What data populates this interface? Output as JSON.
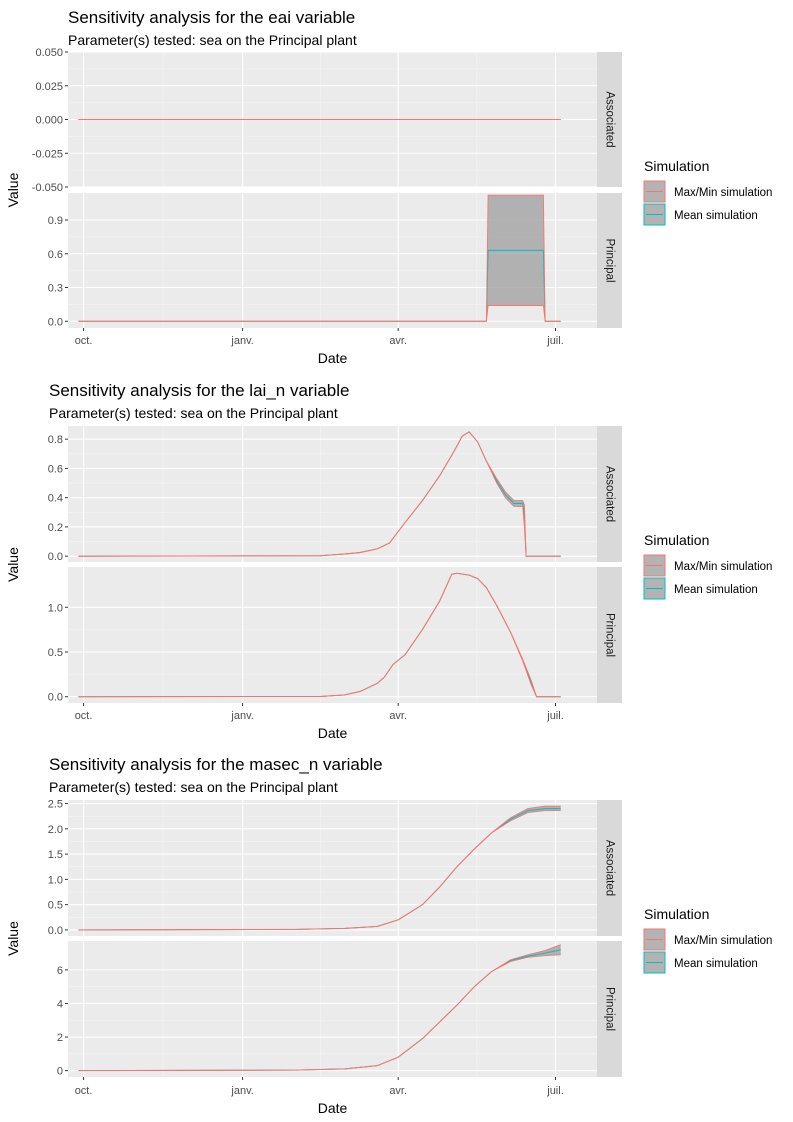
{
  "chart_data": [
    {
      "type": "line",
      "title": "Sensitivity analysis for the eai variable",
      "subtitle": "Parameter(s) tested: sea on the  Principal plant",
      "xlabel": "Date",
      "ylabel": "Value",
      "x_axis": {
        "type": "date",
        "ticks": [
          {
            "date": "2000-10-01",
            "label": "oct."
          },
          {
            "date": "2001-01-01",
            "label": "janv."
          },
          {
            "date": "2001-04-01",
            "label": "avr."
          },
          {
            "date": "2001-07-01",
            "label": "juil."
          }
        ],
        "xlim": [
          "2000-09-22",
          "2001-07-25"
        ]
      },
      "legend": {
        "title": "Simulation",
        "position": "right",
        "entries": [
          {
            "label": "Max/Min simulation",
            "color": "#F8766D"
          },
          {
            "label": "Mean simulation",
            "color": "#00BFC4"
          }
        ]
      },
      "panels": [
        {
          "strip": "Associated",
          "ylim": [
            -0.05,
            0.05
          ],
          "yticks": [
            -0.05,
            -0.025,
            0,
            0.025,
            0.05
          ],
          "ytick_labels": [
            "-0.050",
            "-0.025",
            "0.000",
            "0.025",
            "0.050"
          ],
          "x": [
            "2000-09-28",
            "2001-07-04"
          ],
          "max": [
            0,
            0
          ],
          "min": [
            0,
            0
          ],
          "mean": [
            0,
            0
          ]
        },
        {
          "strip": "Principal",
          "ylim": [
            -0.06,
            1.14
          ],
          "yticks": [
            0,
            0.3,
            0.6,
            0.9
          ],
          "ytick_labels": [
            "0.0",
            "0.3",
            "0.6",
            "0.9"
          ],
          "x": [
            "2000-09-28",
            "2001-05-22",
            "2001-05-23",
            "2001-06-24",
            "2001-06-25",
            "2001-07-04"
          ],
          "max": [
            0,
            0,
            1.12,
            1.12,
            0,
            0
          ],
          "min": [
            0,
            0,
            0.14,
            0.14,
            0,
            0
          ],
          "mean": [
            0,
            0,
            0.63,
            0.63,
            0,
            0
          ]
        }
      ]
    },
    {
      "type": "line",
      "title": "Sensitivity analysis for the lai_n variable",
      "subtitle": "Parameter(s) tested: sea on the  Principal plant",
      "xlabel": "Date",
      "ylabel": "Value",
      "x_axis": {
        "type": "date",
        "ticks": [
          {
            "date": "2000-10-01",
            "label": "oct."
          },
          {
            "date": "2001-01-01",
            "label": "janv."
          },
          {
            "date": "2001-04-01",
            "label": "avr."
          },
          {
            "date": "2001-07-01",
            "label": "juil."
          }
        ],
        "xlim": [
          "2000-09-22",
          "2001-07-25"
        ]
      },
      "legend": {
        "title": "Simulation",
        "position": "right",
        "entries": [
          {
            "label": "Max/Min simulation",
            "color": "#F8766D"
          },
          {
            "label": "Mean simulation",
            "color": "#00BFC4"
          }
        ]
      },
      "panels": [
        {
          "strip": "Associated",
          "ylim": [
            -0.04,
            0.89
          ],
          "yticks": [
            0,
            0.2,
            0.4,
            0.6,
            0.8
          ],
          "ytick_labels": [
            "0.0",
            "0.2",
            "0.4",
            "0.6",
            "0.8"
          ],
          "x": [
            "2000-09-28",
            "2001-02-15",
            "2001-03-01",
            "2001-03-10",
            "2001-03-20",
            "2001-03-27",
            "2001-04-05",
            "2001-04-15",
            "2001-04-25",
            "2001-05-03",
            "2001-05-08",
            "2001-05-12",
            "2001-05-17",
            "2001-05-22",
            "2001-05-28",
            "2001-06-02",
            "2001-06-07",
            "2001-06-12",
            "2001-06-13",
            "2001-06-14",
            "2001-07-04"
          ],
          "max": [
            0,
            0.003,
            0.015,
            0.025,
            0.05,
            0.09,
            0.23,
            0.38,
            0.55,
            0.71,
            0.82,
            0.85,
            0.78,
            0.65,
            0.53,
            0.44,
            0.38,
            0.38,
            0.35,
            0,
            0
          ],
          "min": [
            0,
            0.003,
            0.015,
            0.025,
            0.05,
            0.09,
            0.23,
            0.38,
            0.55,
            0.71,
            0.82,
            0.85,
            0.78,
            0.65,
            0.5,
            0.4,
            0.34,
            0.34,
            0.2,
            0,
            0
          ],
          "mean": [
            0,
            0.003,
            0.015,
            0.025,
            0.05,
            0.09,
            0.23,
            0.38,
            0.55,
            0.71,
            0.82,
            0.85,
            0.78,
            0.65,
            0.515,
            0.42,
            0.36,
            0.36,
            0.28,
            0,
            0
          ]
        },
        {
          "strip": "Principal",
          "ylim": [
            -0.07,
            1.45
          ],
          "yticks": [
            0,
            0.5,
            1.0
          ],
          "ytick_labels": [
            "0.0",
            "0.5",
            "1.0"
          ],
          "x": [
            "2000-09-28",
            "2001-02-15",
            "2001-03-01",
            "2001-03-10",
            "2001-03-20",
            "2001-03-24",
            "2001-03-29",
            "2001-04-05",
            "2001-04-15",
            "2001-04-25",
            "2001-05-02",
            "2001-05-05",
            "2001-05-12",
            "2001-05-17",
            "2001-05-22",
            "2001-05-28",
            "2001-06-05",
            "2001-06-12",
            "2001-06-17",
            "2001-06-20",
            "2001-07-04"
          ],
          "max": [
            0,
            0.003,
            0.02,
            0.06,
            0.15,
            0.22,
            0.36,
            0.47,
            0.75,
            1.07,
            1.37,
            1.38,
            1.36,
            1.32,
            1.22,
            1.02,
            0.72,
            0.42,
            0.18,
            0,
            0
          ],
          "min": [
            0,
            0.003,
            0.02,
            0.06,
            0.15,
            0.22,
            0.36,
            0.47,
            0.75,
            1.07,
            1.37,
            1.38,
            1.36,
            1.32,
            1.22,
            1.02,
            0.72,
            0.4,
            0.13,
            0,
            0
          ],
          "mean": [
            0,
            0.003,
            0.02,
            0.06,
            0.15,
            0.22,
            0.36,
            0.47,
            0.75,
            1.07,
            1.37,
            1.38,
            1.36,
            1.32,
            1.22,
            1.02,
            0.72,
            0.41,
            0.155,
            0,
            0
          ]
        }
      ]
    },
    {
      "type": "line",
      "title": "Sensitivity analysis for the masec_n variable",
      "subtitle": "Parameter(s) tested: sea on the  Principal plant",
      "xlabel": "Date",
      "ylabel": "Value",
      "x_axis": {
        "type": "date",
        "ticks": [
          {
            "date": "2000-10-01",
            "label": "oct."
          },
          {
            "date": "2001-01-01",
            "label": "janv."
          },
          {
            "date": "2001-04-01",
            "label": "avr."
          },
          {
            "date": "2001-07-01",
            "label": "juil."
          }
        ],
        "xlim": [
          "2000-09-22",
          "2001-07-25"
        ]
      },
      "legend": {
        "title": "Simulation",
        "position": "right",
        "entries": [
          {
            "label": "Max/Min simulation",
            "color": "#F8766D"
          },
          {
            "label": "Mean simulation",
            "color": "#00BFC4"
          }
        ]
      },
      "panels": [
        {
          "strip": "Associated",
          "ylim": [
            -0.12,
            2.57
          ],
          "yticks": [
            0,
            0.5,
            1.0,
            1.5,
            2.0,
            2.5
          ],
          "ytick_labels": [
            "0.0",
            "0.5",
            "1.0",
            "1.5",
            "2.0",
            "2.5"
          ],
          "x": [
            "2000-09-28",
            "2001-02-01",
            "2001-03-01",
            "2001-03-20",
            "2001-04-01",
            "2001-04-15",
            "2001-04-25",
            "2001-05-05",
            "2001-05-15",
            "2001-05-25",
            "2001-06-05",
            "2001-06-15",
            "2001-06-25",
            "2001-07-04"
          ],
          "max": [
            0,
            0.01,
            0.03,
            0.07,
            0.2,
            0.5,
            0.85,
            1.25,
            1.6,
            1.92,
            2.22,
            2.4,
            2.45,
            2.45
          ],
          "min": [
            0,
            0.01,
            0.03,
            0.07,
            0.2,
            0.5,
            0.85,
            1.25,
            1.6,
            1.92,
            2.16,
            2.32,
            2.36,
            2.36
          ],
          "mean": [
            0,
            0.01,
            0.03,
            0.07,
            0.2,
            0.5,
            0.85,
            1.25,
            1.6,
            1.92,
            2.19,
            2.36,
            2.4,
            2.4
          ]
        },
        {
          "strip": "Principal",
          "ylim": [
            -0.38,
            7.72
          ],
          "yticks": [
            0,
            2,
            4,
            6
          ],
          "ytick_labels": [
            "0",
            "2",
            "4",
            "6"
          ],
          "x": [
            "2000-09-28",
            "2001-02-01",
            "2001-03-01",
            "2001-03-20",
            "2001-04-01",
            "2001-04-15",
            "2001-04-25",
            "2001-05-05",
            "2001-05-15",
            "2001-05-25",
            "2001-06-05",
            "2001-06-15",
            "2001-06-25",
            "2001-07-04"
          ],
          "max": [
            0,
            0.03,
            0.1,
            0.3,
            0.8,
            1.9,
            2.9,
            3.9,
            5.0,
            5.9,
            6.6,
            6.9,
            7.15,
            7.5
          ],
          "min": [
            0,
            0.03,
            0.1,
            0.3,
            0.8,
            1.9,
            2.9,
            3.9,
            5.0,
            5.9,
            6.5,
            6.75,
            6.85,
            6.9
          ],
          "mean": [
            0,
            0.03,
            0.1,
            0.3,
            0.8,
            1.9,
            2.9,
            3.9,
            5.0,
            5.9,
            6.55,
            6.82,
            7.0,
            7.2
          ]
        }
      ]
    }
  ]
}
